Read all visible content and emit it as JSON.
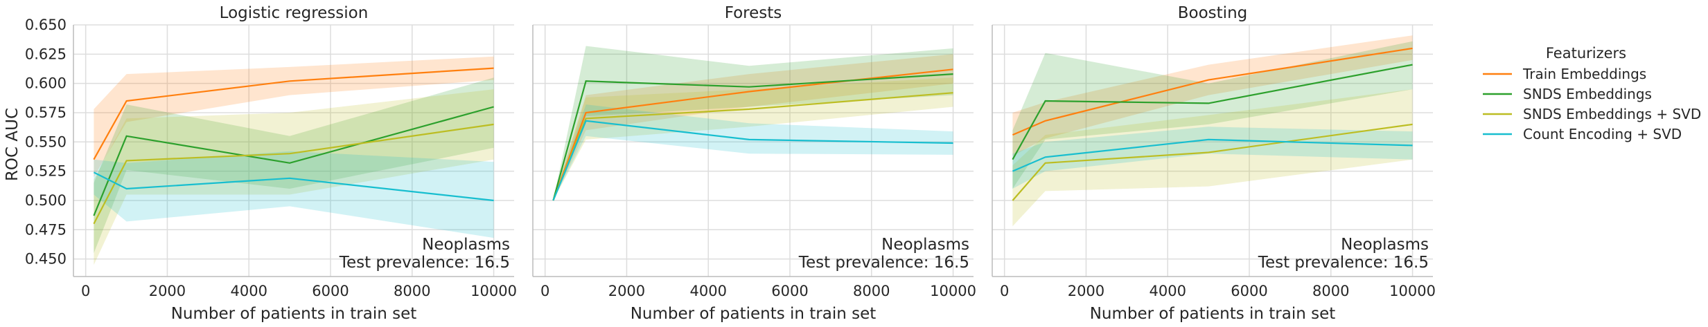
{
  "chart_data": {
    "type": "line",
    "ylabel": "ROC AUC",
    "xlabel": "Number of patients in train set",
    "ylim": [
      0.435,
      0.65
    ],
    "xlim": [
      -300,
      10500
    ],
    "yticks": [
      0.45,
      0.475,
      0.5,
      0.525,
      0.55,
      0.575,
      0.6,
      0.625,
      0.65
    ],
    "ytick_labels": [
      "0.450",
      "0.475",
      "0.500",
      "0.525",
      "0.550",
      "0.575",
      "0.600",
      "0.625",
      "0.650"
    ],
    "xticks": [
      0,
      2000,
      4000,
      6000,
      8000,
      10000
    ],
    "xtick_labels": [
      "0",
      "2000",
      "4000",
      "6000",
      "8000",
      "10000"
    ],
    "grid": true,
    "legend": {
      "title": "Featurizers",
      "placement": "right",
      "entries": [
        {
          "name": "Train Embeddings",
          "color": "#ff7f0e"
        },
        {
          "name": "SNDS Embeddings",
          "color": "#2ca02c"
        },
        {
          "name": "SNDS Embeddings + SVD",
          "color": "#bcbd22"
        },
        {
          "name": "Count Encoding + SVD",
          "color": "#17becf"
        }
      ]
    },
    "x": [
      200,
      1000,
      5000,
      10000
    ],
    "panels": [
      {
        "title": "Logistic regression",
        "annotation_line1": "Neoplasms",
        "annotation_line2": "Test prevalence: 16.5",
        "series": [
          {
            "name": "Train Embeddings",
            "values": [
              0.535,
              0.585,
              0.602,
              0.613
            ],
            "lower": [
              0.52,
              0.567,
              0.59,
              0.603
            ],
            "upper": [
              0.578,
              0.608,
              0.614,
              0.623
            ]
          },
          {
            "name": "SNDS Embeddings",
            "values": [
              0.487,
              0.555,
              0.532,
              0.58
            ],
            "lower": [
              0.455,
              0.526,
              0.51,
              0.545
            ],
            "upper": [
              0.515,
              0.582,
              0.555,
              0.605
            ]
          },
          {
            "name": "SNDS Embeddings + SVD",
            "values": [
              0.48,
              0.534,
              0.54,
              0.565
            ],
            "lower": [
              0.445,
              0.505,
              0.505,
              0.535
            ],
            "upper": [
              0.518,
              0.57,
              0.575,
              0.595
            ]
          },
          {
            "name": "Count Encoding + SVD",
            "values": [
              0.524,
              0.51,
              0.519,
              0.5
            ],
            "lower": [
              0.505,
              0.482,
              0.495,
              0.468
            ],
            "upper": [
              0.535,
              0.532,
              0.542,
              0.533
            ]
          }
        ]
      },
      {
        "title": "Forests",
        "annotation_line1": "Neoplasms",
        "annotation_line2": "Test prevalence: 16.5",
        "series": [
          {
            "name": "Train Embeddings",
            "values": [
              0.5,
              0.575,
              0.593,
              0.612
            ],
            "lower": [
              0.5,
              0.56,
              0.58,
              0.6
            ],
            "upper": [
              0.5,
              0.59,
              0.608,
              0.625
            ]
          },
          {
            "name": "SNDS Embeddings",
            "values": [
              0.5,
              0.602,
              0.597,
              0.608
            ],
            "lower": [
              0.5,
              0.572,
              0.58,
              0.59
            ],
            "upper": [
              0.5,
              0.632,
              0.615,
              0.63
            ]
          },
          {
            "name": "SNDS Embeddings + SVD",
            "values": [
              0.5,
              0.57,
              0.578,
              0.592
            ],
            "lower": [
              0.5,
              0.552,
              0.563,
              0.58
            ],
            "upper": [
              0.5,
              0.588,
              0.595,
              0.605
            ]
          },
          {
            "name": "Count Encoding + SVD",
            "values": [
              0.5,
              0.568,
              0.552,
              0.549
            ],
            "lower": [
              0.5,
              0.555,
              0.54,
              0.539
            ],
            "upper": [
              0.5,
              0.582,
              0.566,
              0.559
            ]
          }
        ]
      },
      {
        "title": "Boosting",
        "annotation_line1": "Neoplasms",
        "annotation_line2": "Test prevalence: 16.5",
        "series": [
          {
            "name": "Train Embeddings",
            "values": [
              0.556,
              0.568,
              0.603,
              0.63
            ],
            "lower": [
              0.538,
              0.553,
              0.59,
              0.62
            ],
            "upper": [
              0.575,
              0.584,
              0.616,
              0.641
            ]
          },
          {
            "name": "SNDS Embeddings",
            "values": [
              0.535,
              0.585,
              0.583,
              0.616
            ],
            "lower": [
              0.51,
              0.552,
              0.565,
              0.595
            ],
            "upper": [
              0.56,
              0.626,
              0.6,
              0.636
            ]
          },
          {
            "name": "SNDS Embeddings + SVD",
            "values": [
              0.5,
              0.532,
              0.541,
              0.565
            ],
            "lower": [
              0.478,
              0.508,
              0.512,
              0.535
            ],
            "upper": [
              0.53,
              0.556,
              0.573,
              0.595
            ]
          },
          {
            "name": "Count Encoding + SVD",
            "values": [
              0.525,
              0.537,
              0.552,
              0.547
            ],
            "lower": [
              0.51,
              0.525,
              0.54,
              0.535
            ],
            "upper": [
              0.54,
              0.55,
              0.563,
              0.559
            ]
          }
        ]
      }
    ]
  }
}
